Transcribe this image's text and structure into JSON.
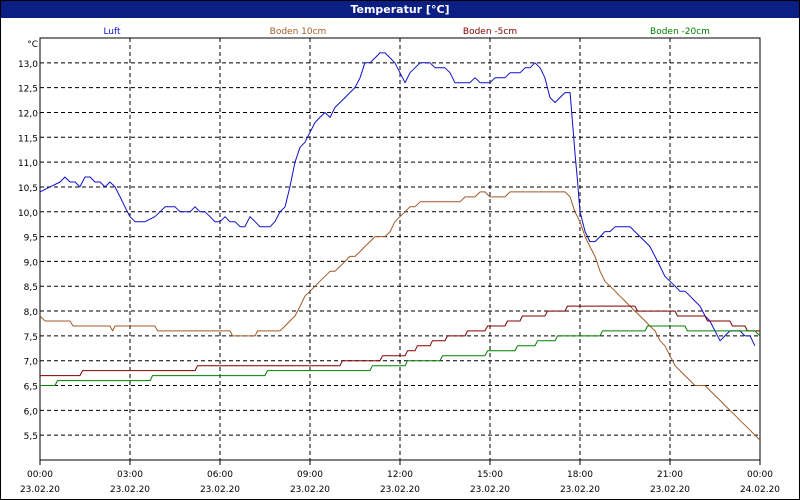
{
  "window": {
    "title": "Temperatur [°C]"
  },
  "chart_data": {
    "type": "line",
    "title": "Temperatur [°C]",
    "ylabel": "°C",
    "xlabel": "",
    "ylim": [
      5.0,
      13.5
    ],
    "xlim": [
      0,
      24
    ],
    "grid": true,
    "legend_placement": "top",
    "y_ticks": [
      "5,5",
      "6,0",
      "6,5",
      "7,0",
      "7,5",
      "8,0",
      "8,5",
      "9,0",
      "9,5",
      "10,0",
      "10,5",
      "11,0",
      "11,5",
      "12,0",
      "12,5",
      "13,0"
    ],
    "x_ticks": [
      {
        "time": "00:00",
        "date": "23.02.20"
      },
      {
        "time": "03:00",
        "date": "23.02.20"
      },
      {
        "time": "06:00",
        "date": "23.02.20"
      },
      {
        "time": "09:00",
        "date": "23.02.20"
      },
      {
        "time": "12:00",
        "date": "23.02.20"
      },
      {
        "time": "15:00",
        "date": "23.02.20"
      },
      {
        "time": "18:00",
        "date": "23.02.20"
      },
      {
        "time": "21:00",
        "date": "23.02.20"
      },
      {
        "time": "00:00",
        "date": "24.02.20"
      }
    ],
    "series": [
      {
        "name": "Luft",
        "color": "#1010c8",
        "points": [
          [
            0,
            10.4
          ],
          [
            0.33,
            10.5
          ],
          [
            0.67,
            10.6
          ],
          [
            0.83,
            10.7
          ],
          [
            1.0,
            10.6
          ],
          [
            1.17,
            10.6
          ],
          [
            1.33,
            10.5
          ],
          [
            1.5,
            10.7
          ],
          [
            1.67,
            10.7
          ],
          [
            1.83,
            10.6
          ],
          [
            2.0,
            10.6
          ],
          [
            2.17,
            10.5
          ],
          [
            2.33,
            10.6
          ],
          [
            2.5,
            10.5
          ],
          [
            2.67,
            10.3
          ],
          [
            2.83,
            10.1
          ],
          [
            3.0,
            9.9
          ],
          [
            3.17,
            9.8
          ],
          [
            3.5,
            9.8
          ],
          [
            3.83,
            9.9
          ],
          [
            4.0,
            10.0
          ],
          [
            4.17,
            10.1
          ],
          [
            4.5,
            10.1
          ],
          [
            4.67,
            10.0
          ],
          [
            5.0,
            10.0
          ],
          [
            5.17,
            10.1
          ],
          [
            5.33,
            10.0
          ],
          [
            5.5,
            10.0
          ],
          [
            5.67,
            9.9
          ],
          [
            5.83,
            9.8
          ],
          [
            6.0,
            9.8
          ],
          [
            6.17,
            9.9
          ],
          [
            6.33,
            9.8
          ],
          [
            6.5,
            9.8
          ],
          [
            6.67,
            9.7
          ],
          [
            6.83,
            9.7
          ],
          [
            7.0,
            9.9
          ],
          [
            7.17,
            9.8
          ],
          [
            7.33,
            9.7
          ],
          [
            7.67,
            9.7
          ],
          [
            7.83,
            9.8
          ],
          [
            8.0,
            10.0
          ],
          [
            8.17,
            10.1
          ],
          [
            8.33,
            10.5
          ],
          [
            8.5,
            11.0
          ],
          [
            8.67,
            11.3
          ],
          [
            8.83,
            11.4
          ],
          [
            9.0,
            11.6
          ],
          [
            9.17,
            11.8
          ],
          [
            9.33,
            11.9
          ],
          [
            9.5,
            12.0
          ],
          [
            9.67,
            11.9
          ],
          [
            9.83,
            12.1
          ],
          [
            10.0,
            12.2
          ],
          [
            10.17,
            12.3
          ],
          [
            10.33,
            12.4
          ],
          [
            10.5,
            12.5
          ],
          [
            10.67,
            12.7
          ],
          [
            10.83,
            13.0
          ],
          [
            11.0,
            13.0
          ],
          [
            11.17,
            13.1
          ],
          [
            11.33,
            13.2
          ],
          [
            11.5,
            13.2
          ],
          [
            11.67,
            13.1
          ],
          [
            11.83,
            13.0
          ],
          [
            12.0,
            12.8
          ],
          [
            12.17,
            12.6
          ],
          [
            12.33,
            12.8
          ],
          [
            12.5,
            12.9
          ],
          [
            12.67,
            13.0
          ],
          [
            13.0,
            13.0
          ],
          [
            13.17,
            12.9
          ],
          [
            13.33,
            12.9
          ],
          [
            13.5,
            12.9
          ],
          [
            13.67,
            12.8
          ],
          [
            13.83,
            12.6
          ],
          [
            14.17,
            12.6
          ],
          [
            14.33,
            12.6
          ],
          [
            14.5,
            12.7
          ],
          [
            14.67,
            12.6
          ],
          [
            15.0,
            12.6
          ],
          [
            15.17,
            12.7
          ],
          [
            15.5,
            12.7
          ],
          [
            15.67,
            12.8
          ],
          [
            16.0,
            12.8
          ],
          [
            16.17,
            12.9
          ],
          [
            16.33,
            12.9
          ],
          [
            16.5,
            13.0
          ],
          [
            16.67,
            12.9
          ],
          [
            16.83,
            12.7
          ],
          [
            17.0,
            12.3
          ],
          [
            17.17,
            12.2
          ],
          [
            17.33,
            12.3
          ],
          [
            17.5,
            12.4
          ],
          [
            17.67,
            12.4
          ],
          [
            17.75,
            11.8
          ],
          [
            17.83,
            11.2
          ],
          [
            17.92,
            10.6
          ],
          [
            18.0,
            10.0
          ],
          [
            18.17,
            9.6
          ],
          [
            18.33,
            9.4
          ],
          [
            18.5,
            9.4
          ],
          [
            18.67,
            9.5
          ],
          [
            18.83,
            9.6
          ],
          [
            19.0,
            9.6
          ],
          [
            19.17,
            9.7
          ],
          [
            19.67,
            9.7
          ],
          [
            19.83,
            9.6
          ],
          [
            20.0,
            9.5
          ],
          [
            20.17,
            9.4
          ],
          [
            20.33,
            9.3
          ],
          [
            20.5,
            9.1
          ],
          [
            20.67,
            8.9
          ],
          [
            20.83,
            8.7
          ],
          [
            21.0,
            8.6
          ],
          [
            21.17,
            8.5
          ],
          [
            21.33,
            8.4
          ],
          [
            21.5,
            8.4
          ],
          [
            21.67,
            8.3
          ],
          [
            21.83,
            8.2
          ],
          [
            22.0,
            8.1
          ],
          [
            22.17,
            7.9
          ],
          [
            22.33,
            7.8
          ],
          [
            22.5,
            7.6
          ],
          [
            22.67,
            7.4
          ],
          [
            22.83,
            7.5
          ],
          [
            23.0,
            7.6
          ],
          [
            23.17,
            7.6
          ],
          [
            23.33,
            7.6
          ],
          [
            23.5,
            7.5
          ],
          [
            23.67,
            7.5
          ],
          [
            23.83,
            7.3
          ]
        ]
      },
      {
        "name": "Boden 10cm",
        "color": "#a05a28",
        "points": [
          [
            0,
            7.9
          ],
          [
            0.17,
            7.8
          ],
          [
            1.0,
            7.8
          ],
          [
            1.1,
            7.7
          ],
          [
            2.33,
            7.7
          ],
          [
            2.42,
            7.6
          ],
          [
            2.5,
            7.7
          ],
          [
            3.83,
            7.7
          ],
          [
            3.92,
            7.6
          ],
          [
            6.33,
            7.6
          ],
          [
            6.42,
            7.5
          ],
          [
            7.17,
            7.5
          ],
          [
            7.25,
            7.6
          ],
          [
            8.0,
            7.6
          ],
          [
            8.17,
            7.7
          ],
          [
            8.33,
            7.8
          ],
          [
            8.5,
            7.9
          ],
          [
            8.67,
            8.1
          ],
          [
            8.83,
            8.3
          ],
          [
            9.0,
            8.4
          ],
          [
            9.17,
            8.5
          ],
          [
            9.33,
            8.6
          ],
          [
            9.5,
            8.7
          ],
          [
            9.67,
            8.8
          ],
          [
            9.83,
            8.8
          ],
          [
            10.0,
            8.9
          ],
          [
            10.17,
            9.0
          ],
          [
            10.33,
            9.1
          ],
          [
            10.5,
            9.1
          ],
          [
            10.67,
            9.2
          ],
          [
            10.83,
            9.3
          ],
          [
            11.0,
            9.4
          ],
          [
            11.17,
            9.5
          ],
          [
            11.5,
            9.5
          ],
          [
            11.67,
            9.6
          ],
          [
            11.83,
            9.8
          ],
          [
            12.0,
            9.9
          ],
          [
            12.17,
            10.0
          ],
          [
            12.33,
            10.1
          ],
          [
            12.5,
            10.1
          ],
          [
            12.67,
            10.2
          ],
          [
            14.0,
            10.2
          ],
          [
            14.17,
            10.3
          ],
          [
            14.5,
            10.3
          ],
          [
            14.67,
            10.4
          ],
          [
            14.83,
            10.4
          ],
          [
            15.0,
            10.3
          ],
          [
            15.5,
            10.3
          ],
          [
            15.67,
            10.4
          ],
          [
            17.5,
            10.4
          ],
          [
            17.67,
            10.3
          ],
          [
            17.83,
            10.0
          ],
          [
            18.0,
            9.8
          ],
          [
            18.17,
            9.5
          ],
          [
            18.33,
            9.3
          ],
          [
            18.5,
            9.1
          ],
          [
            18.67,
            8.8
          ],
          [
            18.83,
            8.6
          ],
          [
            19.0,
            8.5
          ],
          [
            19.17,
            8.4
          ],
          [
            19.33,
            8.3
          ],
          [
            19.5,
            8.2
          ],
          [
            19.67,
            8.1
          ],
          [
            19.83,
            8.0
          ],
          [
            20.0,
            7.9
          ],
          [
            20.17,
            7.8
          ],
          [
            20.33,
            7.7
          ],
          [
            20.5,
            7.6
          ],
          [
            20.67,
            7.4
          ],
          [
            20.83,
            7.3
          ],
          [
            21.0,
            7.1
          ],
          [
            21.17,
            6.9
          ],
          [
            21.33,
            6.8
          ],
          [
            21.5,
            6.7
          ],
          [
            21.67,
            6.6
          ],
          [
            21.83,
            6.5
          ],
          [
            22.17,
            6.5
          ],
          [
            22.33,
            6.4
          ],
          [
            22.5,
            6.3
          ],
          [
            22.67,
            6.2
          ],
          [
            22.83,
            6.1
          ],
          [
            23.0,
            6.0
          ],
          [
            23.17,
            5.9
          ],
          [
            23.33,
            5.8
          ],
          [
            23.5,
            5.7
          ],
          [
            23.67,
            5.6
          ],
          [
            23.83,
            5.5
          ],
          [
            24.0,
            5.4
          ]
        ]
      },
      {
        "name": "Boden -5cm",
        "color": "#800000",
        "points": [
          [
            0,
            6.7
          ],
          [
            1.33,
            6.7
          ],
          [
            1.42,
            6.8
          ],
          [
            5.17,
            6.8
          ],
          [
            5.25,
            6.9
          ],
          [
            10.0,
            6.9
          ],
          [
            10.08,
            7.0
          ],
          [
            11.33,
            7.0
          ],
          [
            11.42,
            7.1
          ],
          [
            12.17,
            7.1
          ],
          [
            12.25,
            7.2
          ],
          [
            12.5,
            7.2
          ],
          [
            12.58,
            7.3
          ],
          [
            13.0,
            7.3
          ],
          [
            13.08,
            7.4
          ],
          [
            13.5,
            7.4
          ],
          [
            13.58,
            7.5
          ],
          [
            14.17,
            7.5
          ],
          [
            14.25,
            7.6
          ],
          [
            14.83,
            7.6
          ],
          [
            14.92,
            7.7
          ],
          [
            15.5,
            7.7
          ],
          [
            15.58,
            7.8
          ],
          [
            16.0,
            7.8
          ],
          [
            16.08,
            7.9
          ],
          [
            16.83,
            7.9
          ],
          [
            16.92,
            8.0
          ],
          [
            17.5,
            8.0
          ],
          [
            17.58,
            8.1
          ],
          [
            19.83,
            8.1
          ],
          [
            19.92,
            8.0
          ],
          [
            21.17,
            8.0
          ],
          [
            21.25,
            7.9
          ],
          [
            22.17,
            7.9
          ],
          [
            22.25,
            7.8
          ],
          [
            23.0,
            7.8
          ],
          [
            23.08,
            7.7
          ],
          [
            23.5,
            7.7
          ],
          [
            23.58,
            7.6
          ],
          [
            24.0,
            7.6
          ]
        ]
      },
      {
        "name": "Boden -20cm",
        "color": "#008000",
        "points": [
          [
            0,
            6.5
          ],
          [
            0.5,
            6.5
          ],
          [
            0.58,
            6.6
          ],
          [
            3.67,
            6.6
          ],
          [
            3.75,
            6.7
          ],
          [
            7.5,
            6.7
          ],
          [
            7.58,
            6.8
          ],
          [
            11.0,
            6.8
          ],
          [
            11.08,
            6.9
          ],
          [
            12.17,
            6.9
          ],
          [
            12.25,
            7.0
          ],
          [
            13.33,
            7.0
          ],
          [
            13.42,
            7.1
          ],
          [
            14.83,
            7.1
          ],
          [
            14.92,
            7.2
          ],
          [
            15.83,
            7.2
          ],
          [
            15.92,
            7.3
          ],
          [
            16.5,
            7.3
          ],
          [
            16.58,
            7.4
          ],
          [
            17.17,
            7.4
          ],
          [
            17.25,
            7.5
          ],
          [
            18.67,
            7.5
          ],
          [
            18.75,
            7.6
          ],
          [
            20.17,
            7.6
          ],
          [
            20.25,
            7.7
          ],
          [
            21.5,
            7.7
          ],
          [
            21.58,
            7.6
          ],
          [
            23.83,
            7.6
          ],
          [
            24.0,
            7.5
          ]
        ]
      }
    ]
  }
}
